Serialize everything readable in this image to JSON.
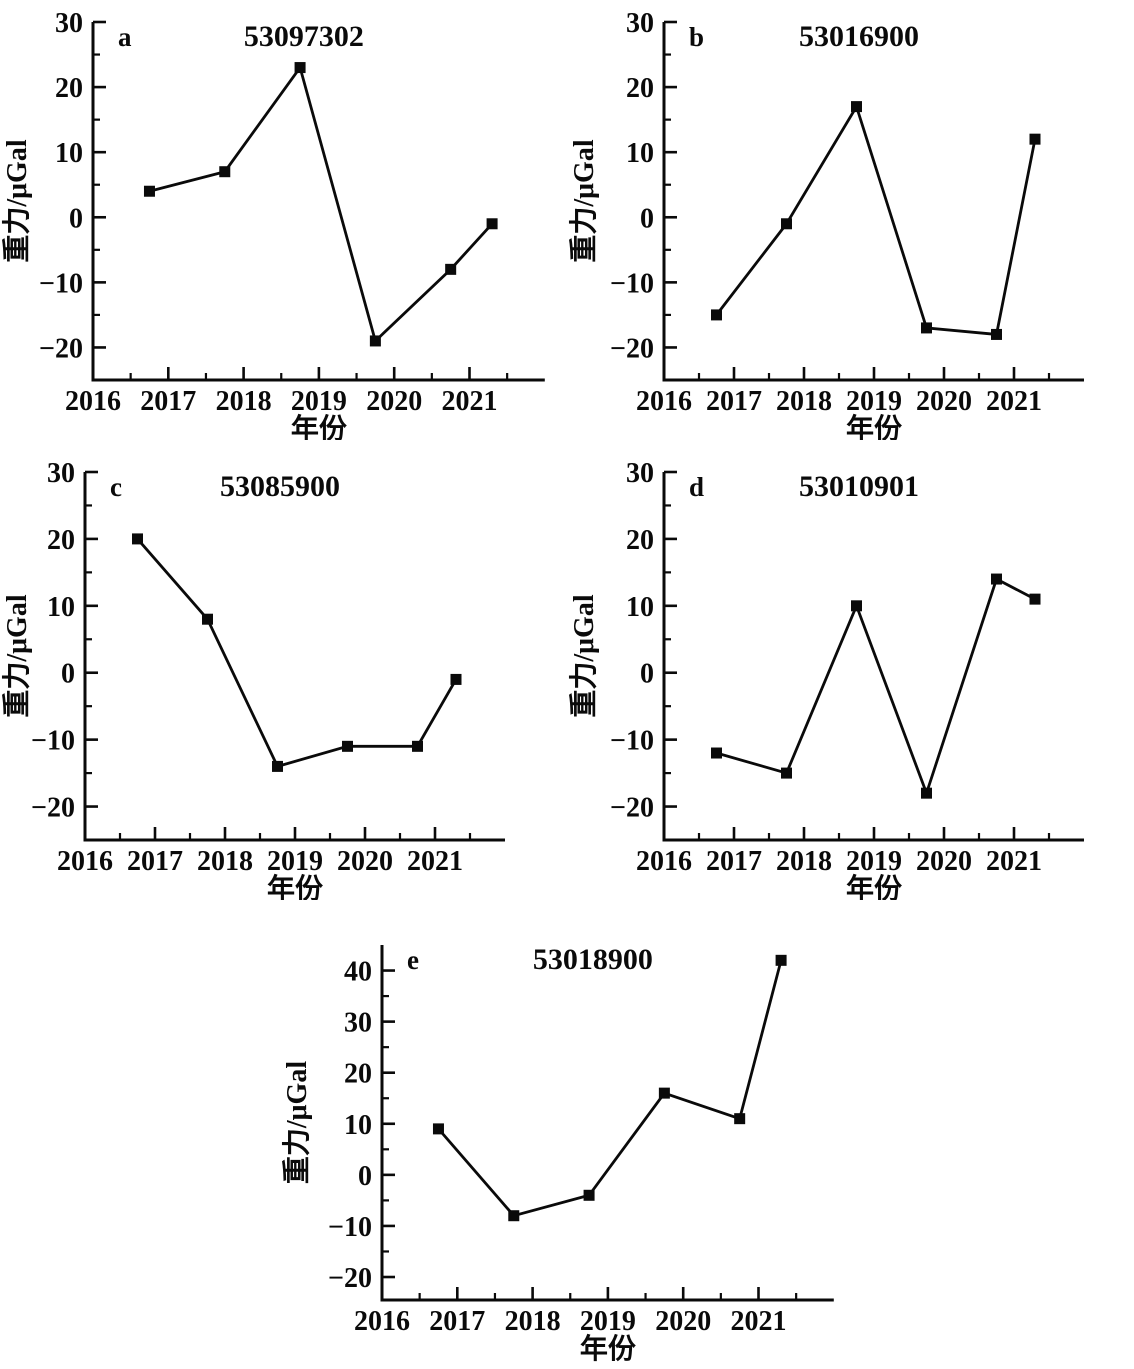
{
  "figure": {
    "title": "Point-value gravity time series panels",
    "xlabel": "年份",
    "ylabel": "重力/μGal",
    "line_color": "#0a0a0a",
    "background_color": "#ffffff",
    "marker": "square"
  },
  "chart_data": [
    {
      "type": "line",
      "panel": "a",
      "title": "53097302",
      "xlabel": "年份",
      "ylabel": "重力/μGal",
      "x": [
        2016.75,
        2017.75,
        2018.75,
        2019.75,
        2020.75,
        2021.3
      ],
      "y": [
        4,
        7,
        23,
        -19,
        -8,
        -1
      ],
      "xlim": [
        2016,
        2022
      ],
      "ylim": [
        -25,
        30
      ],
      "xticks": [
        2016,
        2017,
        2018,
        2019,
        2020,
        2021
      ],
      "yticks": [
        -20,
        -10,
        0,
        10,
        20,
        30
      ],
      "grid": false,
      "legend": "none"
    },
    {
      "type": "line",
      "panel": "b",
      "title": "53016900",
      "xlabel": "年份",
      "ylabel": "重力/μGal",
      "x": [
        2016.75,
        2017.75,
        2018.75,
        2019.75,
        2020.75,
        2021.3
      ],
      "y": [
        -15,
        -1,
        17,
        -17,
        -18,
        12
      ],
      "xlim": [
        2016,
        2022
      ],
      "ylim": [
        -25,
        30
      ],
      "xticks": [
        2016,
        2017,
        2018,
        2019,
        2020,
        2021
      ],
      "yticks": [
        -20,
        -10,
        0,
        10,
        20,
        30
      ],
      "grid": false,
      "legend": "none"
    },
    {
      "type": "line",
      "panel": "c",
      "title": "53085900",
      "xlabel": "年份",
      "ylabel": "重力/μGal",
      "x": [
        2016.75,
        2017.75,
        2018.75,
        2019.75,
        2020.75,
        2021.3
      ],
      "y": [
        20,
        8,
        -14,
        -11,
        -11,
        -1
      ],
      "xlim": [
        2016,
        2022
      ],
      "ylim": [
        -25,
        30
      ],
      "xticks": [
        2016,
        2017,
        2018,
        2019,
        2020,
        2021
      ],
      "yticks": [
        -20,
        -10,
        0,
        10,
        20,
        30
      ],
      "grid": false,
      "legend": "none"
    },
    {
      "type": "line",
      "panel": "d",
      "title": "53010901",
      "xlabel": "年份",
      "ylabel": "重力/μGal",
      "x": [
        2016.75,
        2017.75,
        2018.75,
        2019.75,
        2020.75,
        2021.3
      ],
      "y": [
        -12,
        -15,
        10,
        -18,
        14,
        11
      ],
      "xlim": [
        2016,
        2022
      ],
      "ylim": [
        -25,
        30
      ],
      "xticks": [
        2016,
        2017,
        2018,
        2019,
        2020,
        2021
      ],
      "yticks": [
        -20,
        -10,
        0,
        10,
        20,
        30
      ],
      "grid": false,
      "legend": "none"
    },
    {
      "type": "line",
      "panel": "e",
      "title": "53018900",
      "xlabel": "年份",
      "ylabel": "重力/μGal",
      "x": [
        2016.75,
        2017.75,
        2018.75,
        2019.75,
        2020.75,
        2021.3
      ],
      "y": [
        9,
        -8,
        -4,
        16,
        11,
        42
      ],
      "xlim": [
        2016,
        2022
      ],
      "ylim": [
        -24.5,
        45
      ],
      "xticks": [
        2016,
        2017,
        2018,
        2019,
        2020,
        2021
      ],
      "yticks": [
        -20,
        -10,
        0,
        10,
        20,
        30,
        40
      ],
      "grid": false,
      "legend": "none"
    }
  ]
}
